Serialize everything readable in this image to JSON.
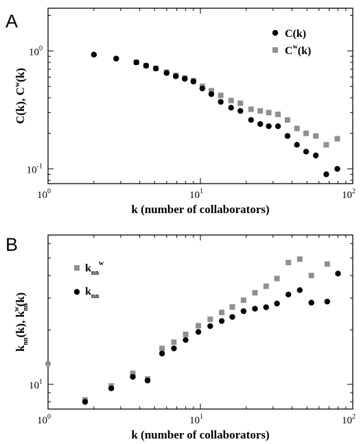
{
  "chart_data": [
    {
      "panel": "A",
      "type": "scatter",
      "scale": "log-log",
      "xlabel": "k (number of collaborators)",
      "ylabel": "C(k), C^w(k)",
      "ylabel_parts": [
        "C(k), C",
        "w",
        "(k)"
      ],
      "xlim": [
        1,
        100
      ],
      "ylim": [
        0.075,
        2.3
      ],
      "xticks": [
        {
          "v": 1,
          "base": "10",
          "exp": "0"
        },
        {
          "v": 10,
          "base": "10",
          "exp": "1"
        },
        {
          "v": 100,
          "base": "10",
          "exp": "2"
        }
      ],
      "yticks": [
        {
          "v": 0.1,
          "base": "10",
          "exp": "-1"
        },
        {
          "v": 1,
          "base": "10",
          "exp": "0"
        }
      ],
      "legend_position": "top-right",
      "series": [
        {
          "name": "C(k)",
          "name_parts": [
            "C(k)"
          ],
          "marker": "circle",
          "color": "#000000",
          "x": [
            2.0,
            2.8,
            3.8,
            4.4,
            5.1,
            6.0,
            6.9,
            7.9,
            9.0,
            10.3,
            11.8,
            13.6,
            15.9,
            18.3,
            21.5,
            24.7,
            28.1,
            32.3,
            37.3,
            43.0,
            49.4,
            57.2,
            67.0,
            79.2
          ],
          "y": [
            0.93,
            0.86,
            0.8,
            0.75,
            0.71,
            0.65,
            0.61,
            0.58,
            0.55,
            0.48,
            0.43,
            0.37,
            0.33,
            0.31,
            0.26,
            0.24,
            0.23,
            0.23,
            0.19,
            0.16,
            0.14,
            0.13,
            0.09,
            0.1
          ]
        },
        {
          "name": "C^w(k)",
          "name_parts": [
            "C",
            "w",
            "(k)"
          ],
          "marker": "square",
          "color": "#909090",
          "x": [
            2.0,
            2.8,
            3.8,
            4.4,
            5.1,
            6.0,
            6.9,
            7.9,
            9.0,
            10.3,
            11.8,
            13.6,
            15.9,
            18.3,
            21.5,
            24.7,
            28.1,
            32.3,
            37.3,
            43.0,
            49.4,
            57.2,
            67.0,
            79.2
          ],
          "y": [
            0.93,
            0.86,
            0.8,
            0.75,
            0.71,
            0.66,
            0.62,
            0.59,
            0.56,
            0.5,
            0.46,
            0.42,
            0.38,
            0.36,
            0.32,
            0.31,
            0.3,
            0.29,
            0.26,
            0.22,
            0.2,
            0.19,
            0.16,
            0.18
          ]
        }
      ]
    },
    {
      "panel": "B",
      "type": "scatter",
      "scale": "log-log",
      "xlabel": "k (number of collaborators)",
      "ylabel": "k_nn(k), k_nn^w(k)",
      "ylabel_parts": [
        "k",
        "nn",
        "(k), k",
        "nn",
        "w",
        "(k)"
      ],
      "xlim": [
        1,
        100
      ],
      "ylim": [
        7.3,
        67
      ],
      "xticks": [
        {
          "v": 1,
          "base": "10",
          "exp": "0"
        },
        {
          "v": 10,
          "base": "10",
          "exp": "1"
        },
        {
          "v": 100,
          "base": "10",
          "exp": "2"
        }
      ],
      "yticks": [
        {
          "v": 10,
          "base": "10",
          "exp": "1"
        }
      ],
      "legend_position": "top-left",
      "series": [
        {
          "name": "k_nn^w",
          "name_parts": [
            "k",
            "nn",
            "w"
          ],
          "marker": "square",
          "color": "#909090",
          "x": [
            1.0,
            1.75,
            2.6,
            3.6,
            4.5,
            5.6,
            6.7,
            8.0,
            9.7,
            11.6,
            13.8,
            16.2,
            19.2,
            22.8,
            27.0,
            31.8,
            37.8,
            44.9,
            53.5,
            68.0
          ],
          "y": [
            13.0,
            8.2,
            9.8,
            11.5,
            10.7,
            15.8,
            17.1,
            18.9,
            21.1,
            22.9,
            25.0,
            26.8,
            29.2,
            32.1,
            34.9,
            38.5,
            47.2,
            49.3,
            40.0,
            46.3
          ],
          "note_first_point_color": "#909090"
        },
        {
          "name": "k_nn",
          "name_parts": [
            "k",
            "nn"
          ],
          "marker": "circle",
          "color": "#000000",
          "x": [
            1.75,
            2.6,
            3.6,
            4.5,
            5.6,
            6.7,
            8.0,
            9.7,
            11.6,
            13.8,
            16.2,
            19.2,
            22.8,
            27.0,
            31.8,
            37.8,
            44.9,
            53.5,
            68.0,
            80.0
          ],
          "y": [
            8.0,
            9.5,
            11.0,
            10.5,
            14.8,
            15.8,
            17.6,
            19.5,
            21.0,
            22.4,
            23.6,
            25.4,
            26.2,
            26.7,
            28.0,
            31.4,
            33.2,
            28.3,
            28.7,
            41.0
          ]
        }
      ]
    }
  ]
}
